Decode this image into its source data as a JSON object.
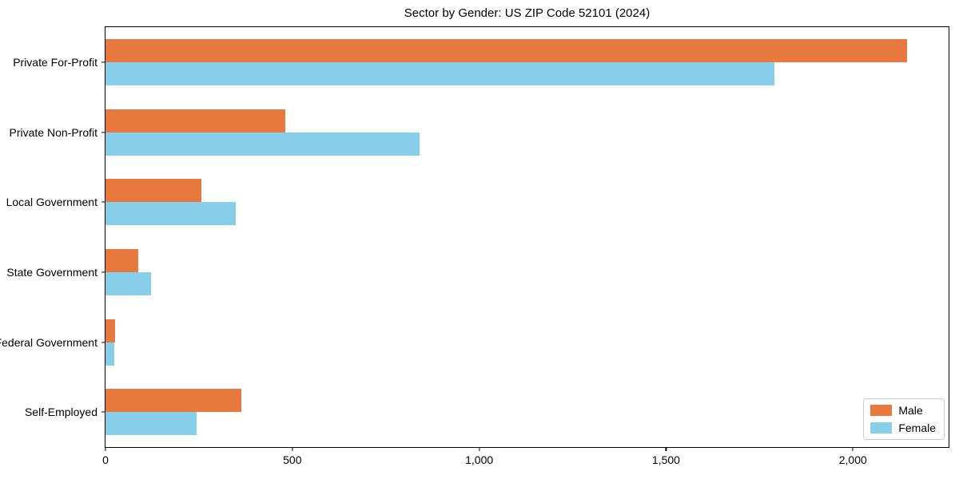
{
  "title": "Sector by Gender: US ZIP Code 52101 (2024)",
  "chart_data": {
    "type": "bar",
    "orientation": "horizontal",
    "title": "Sector by Gender: US ZIP Code 52101 (2024)",
    "xlabel": "",
    "ylabel": "",
    "categories": [
      "Private For-Profit",
      "Private Non-Profit",
      "Local Government",
      "State Government",
      "Federal Government",
      "Self-Employed"
    ],
    "series": [
      {
        "name": "Male",
        "color": "#e8793e",
        "values": [
          2145,
          482,
          256,
          88,
          26,
          363
        ]
      },
      {
        "name": "Female",
        "color": "#87ceeb",
        "values": [
          1790,
          840,
          348,
          122,
          23,
          243
        ]
      }
    ],
    "xlim": [
      0,
      2256
    ],
    "xticks": [
      {
        "value": 0,
        "label": "0"
      },
      {
        "value": 500,
        "label": "500"
      },
      {
        "value": 1000,
        "label": "1,000"
      },
      {
        "value": 1500,
        "label": "1,500"
      },
      {
        "value": 2000,
        "label": "2,000"
      }
    ],
    "grid": false,
    "legend": {
      "position": "lower right",
      "entries": [
        "Male",
        "Female"
      ]
    }
  }
}
